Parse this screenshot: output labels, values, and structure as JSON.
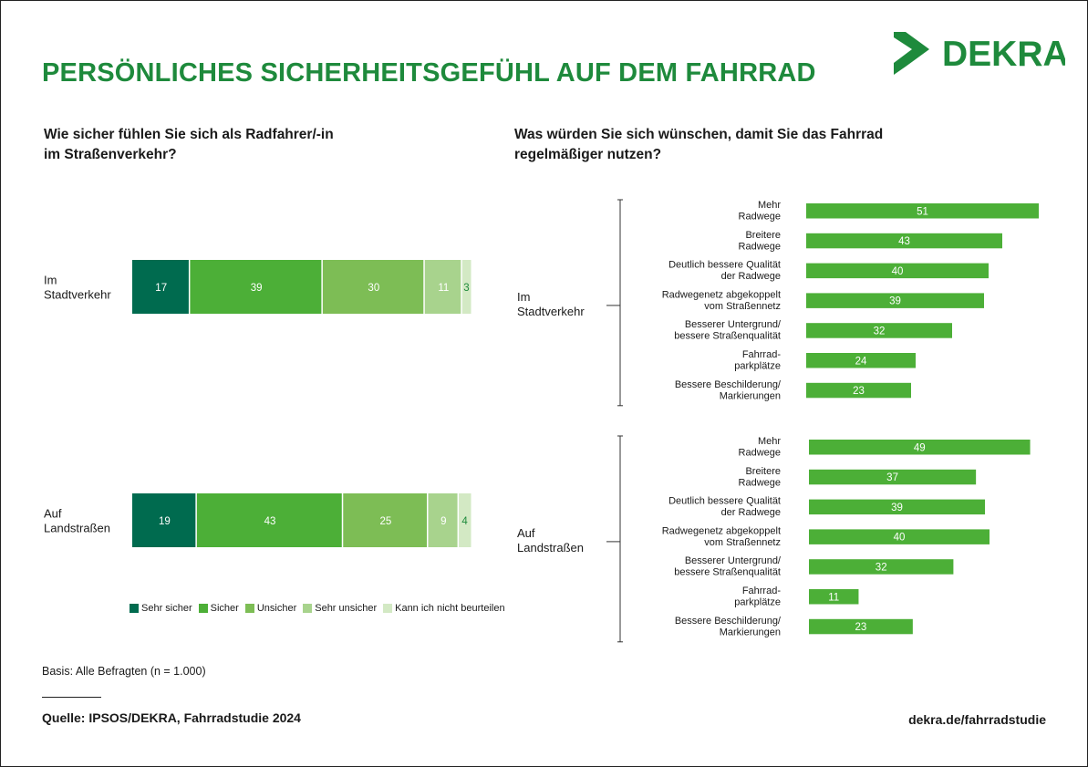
{
  "title": "PERSÖNLICHES SICHERHEITSGEFÜHL AUF DEM FAHRRAD",
  "brand": {
    "name": "DEKRA",
    "color": "#1e8a3c"
  },
  "left_question": [
    "Wie sicher fühlen Sie sich als Radfahrer/-in",
    "im Straßenverkehr?"
  ],
  "right_question": [
    "Was würden Sie sich wünschen, damit Sie das Fahrrad",
    "regelmäßiger nutzen?"
  ],
  "legend": [
    {
      "label": "Sehr sicher",
      "color": "#006b4f"
    },
    {
      "label": "Sicher",
      "color": "#4caf37"
    },
    {
      "label": "Unsicher",
      "color": "#7dbd55"
    },
    {
      "label": "Sehr unsicher",
      "color": "#a8d38d"
    },
    {
      "label": "Kann ich nicht beurteilen",
      "color": "#d3e9c4"
    }
  ],
  "basis": "Basis: Alle Befragten (n = 1.000)",
  "source": "Quelle: IPSOS/DEKRA, Fahrradstudie 2024",
  "footer_url": "dekra.de/fahrradstudie",
  "chart_data": [
    {
      "type": "bar",
      "stacked": true,
      "orientation": "horizontal",
      "categories": [
        [
          "Im",
          "Stadtverkehr"
        ],
        [
          "Auf",
          "Landstraßen"
        ]
      ],
      "series": [
        {
          "name": "Sehr sicher",
          "values": [
            17,
            19
          ],
          "color": "#006b4f"
        },
        {
          "name": "Sicher",
          "values": [
            39,
            43
          ],
          "color": "#4caf37"
        },
        {
          "name": "Unsicher",
          "values": [
            30,
            25
          ],
          "color": "#7dbd55"
        },
        {
          "name": "Sehr unsicher",
          "values": [
            11,
            9
          ],
          "color": "#a8d38d"
        },
        {
          "name": "Kann ich nicht beurteilen",
          "values": [
            3,
            4
          ],
          "color": "#d3e9c4"
        }
      ],
      "legend": "bottom"
    },
    {
      "type": "bar",
      "orientation": "horizontal",
      "bar_color": "#4caf37",
      "groups": [
        {
          "label": [
            "Im",
            "Stadtverkehr"
          ],
          "items": [
            {
              "label": [
                "Mehr",
                "Radwege"
              ],
              "value": 51
            },
            {
              "label": [
                "Breitere",
                "Radwege"
              ],
              "value": 43
            },
            {
              "label": [
                "Deutlich bessere Qualität",
                "der Radwege"
              ],
              "value": 40
            },
            {
              "label": [
                "Radwegenetz abgekoppelt",
                "vom Straßennetz"
              ],
              "value": 39
            },
            {
              "label": [
                "Besserer Untergrund/",
                "bessere Straßenqualität"
              ],
              "value": 32
            },
            {
              "label": [
                "Fahrrad-",
                "parkplätze"
              ],
              "value": 24
            },
            {
              "label": [
                "Bessere Beschilderung/",
                "Markierungen"
              ],
              "value": 23
            }
          ]
        },
        {
          "label": [
            "Auf",
            "Landstraßen"
          ],
          "items": [
            {
              "label": [
                "Mehr",
                "Radwege"
              ],
              "value": 49
            },
            {
              "label": [
                "Breitere",
                "Radwege"
              ],
              "value": 37
            },
            {
              "label": [
                "Deutlich bessere Qualität",
                "der Radwege"
              ],
              "value": 39
            },
            {
              "label": [
                "Radwegenetz abgekoppelt",
                "vom Straßennetz"
              ],
              "value": 40
            },
            {
              "label": [
                "Besserer Untergrund/",
                "bessere Straßenqualität"
              ],
              "value": 32
            },
            {
              "label": [
                "Fahrrad-",
                "parkplätze"
              ],
              "value": 11
            },
            {
              "label": [
                "Bessere Beschilderung/",
                "Markierungen"
              ],
              "value": 23
            }
          ]
        }
      ]
    }
  ]
}
